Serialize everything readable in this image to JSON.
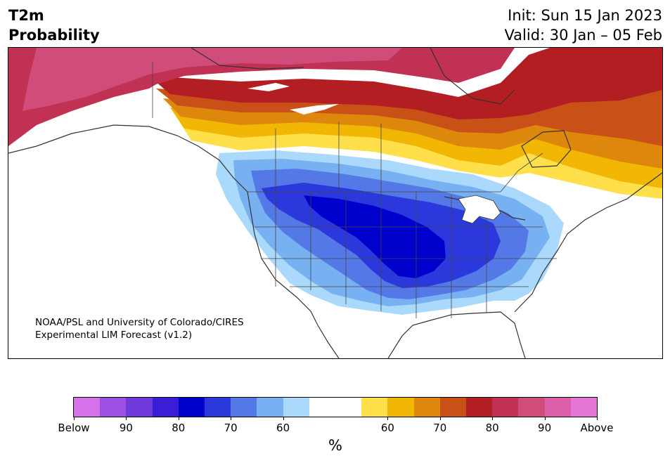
{
  "header": {
    "title_line1": "T2m",
    "title_line2": "Probability",
    "init": "Init: Sun 15 Jan 2023",
    "valid": "Valid: 30 Jan – 05 Feb"
  },
  "credit": {
    "line1": "NOAA/PSL and University of Colorado/CIRES",
    "line2": "Experimental LIM Forecast (v1.2)"
  },
  "colors": {
    "map_fill": [
      "#ffffff",
      "#aad9fb",
      "#78b1f1",
      "#5479e6",
      "#2a38dc",
      "#0000cd",
      "#ffdf4a",
      "#f2b705",
      "#de870d",
      "#c95117",
      "#b31e22",
      "#c03154",
      "#d04c7a"
    ],
    "colorbar": [
      "#d672ea",
      "#9c4fe0",
      "#6f38d8",
      "#3a1dd4",
      "#0000cd",
      "#2a38dc",
      "#5479e6",
      "#78b1f1",
      "#aad9fb",
      "#ffffff",
      "#ffffff",
      "#ffdf4a",
      "#f2b705",
      "#de870d",
      "#c95117",
      "#b31e22",
      "#c03154",
      "#d04c7a",
      "#dd5faa",
      "#e677d8"
    ]
  },
  "colorbar": {
    "labels": [
      "Below",
      "90",
      "80",
      "70",
      "60",
      "60",
      "70",
      "80",
      "90",
      "Above"
    ],
    "unit": "%"
  }
}
